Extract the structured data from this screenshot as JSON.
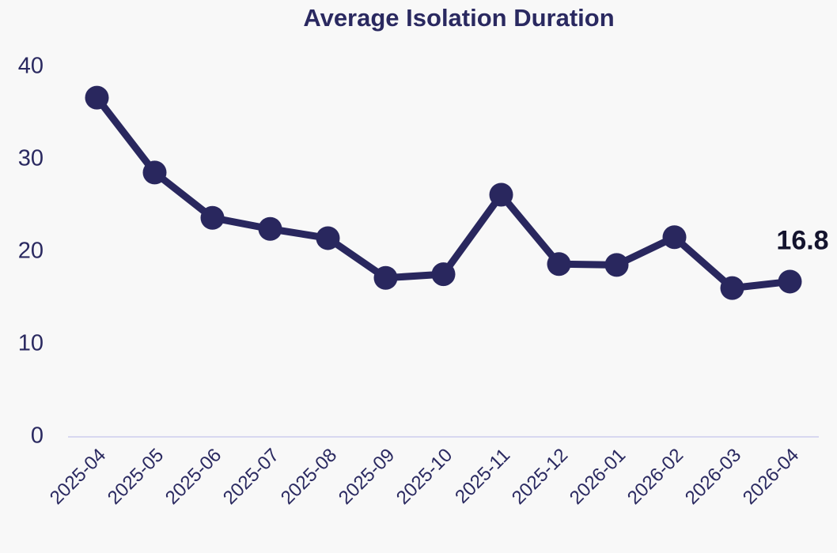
{
  "chart_data": {
    "type": "line",
    "title": "Average Isolation Duration",
    "categories": [
      "2025-04",
      "2025-05",
      "2025-06",
      "2025-07",
      "2025-08",
      "2025-09",
      "2025-10",
      "2025-11",
      "2025-12",
      "2026-01",
      "2026-02",
      "2026-03",
      "2026-04"
    ],
    "series": [
      {
        "name": "Average Isolation Duration",
        "color": "#29275e",
        "values": [
          36.7,
          28.6,
          23.7,
          22.5,
          21.5,
          17.2,
          17.6,
          26.2,
          18.7,
          18.6,
          21.6,
          16.1,
          16.8
        ]
      }
    ],
    "ylim": [
      0,
      40
    ],
    "yticks": [
      0,
      10,
      20,
      30,
      40
    ],
    "grid": false
  }
}
